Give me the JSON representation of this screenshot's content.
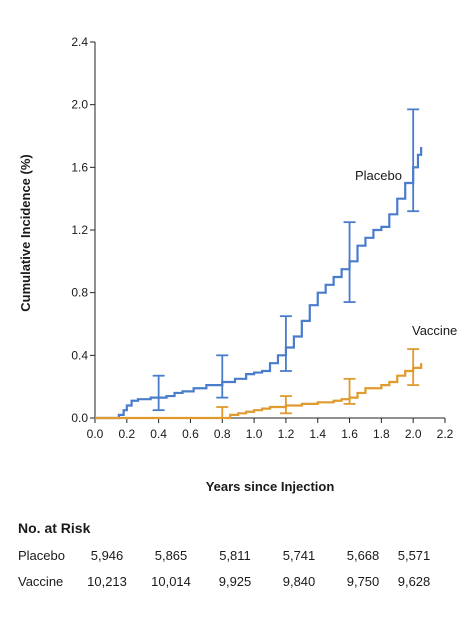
{
  "chart_data": {
    "type": "line",
    "xlabel": "Years since Injection",
    "ylabel": "Cumulative Incidence (%)",
    "xlim": [
      0.0,
      2.2
    ],
    "ylim": [
      0.0,
      2.4
    ],
    "x_ticks": [
      "0.0",
      "0.2",
      "0.4",
      "0.6",
      "0.8",
      "1.0",
      "1.2",
      "1.4",
      "1.6",
      "1.8",
      "2.0",
      "2.2"
    ],
    "y_ticks": [
      "0.0",
      "0.4",
      "0.8",
      "1.2",
      "1.6",
      "2.0",
      "2.4"
    ],
    "grid": false,
    "series": [
      {
        "name": "Placebo",
        "color": "#4a7ccc",
        "points": [
          [
            0,
            0
          ],
          [
            0.1,
            0
          ],
          [
            0.15,
            0.02
          ],
          [
            0.18,
            0.05
          ],
          [
            0.2,
            0.08
          ],
          [
            0.23,
            0.11
          ],
          [
            0.27,
            0.12
          ],
          [
            0.35,
            0.13
          ],
          [
            0.45,
            0.14
          ],
          [
            0.5,
            0.16
          ],
          [
            0.55,
            0.17
          ],
          [
            0.62,
            0.19
          ],
          [
            0.7,
            0.21
          ],
          [
            0.8,
            0.23
          ],
          [
            0.88,
            0.25
          ],
          [
            0.95,
            0.28
          ],
          [
            1.0,
            0.29
          ],
          [
            1.05,
            0.3
          ],
          [
            1.1,
            0.35
          ],
          [
            1.15,
            0.4
          ],
          [
            1.2,
            0.45
          ],
          [
            1.25,
            0.52
          ],
          [
            1.3,
            0.62
          ],
          [
            1.35,
            0.72
          ],
          [
            1.4,
            0.8
          ],
          [
            1.45,
            0.85
          ],
          [
            1.5,
            0.9
          ],
          [
            1.55,
            0.95
          ],
          [
            1.6,
            1.0
          ],
          [
            1.65,
            1.1
          ],
          [
            1.7,
            1.15
          ],
          [
            1.75,
            1.2
          ],
          [
            1.8,
            1.22
          ],
          [
            1.85,
            1.3
          ],
          [
            1.9,
            1.4
          ],
          [
            1.95,
            1.5
          ],
          [
            2.0,
            1.6
          ],
          [
            2.03,
            1.68
          ],
          [
            2.05,
            1.73
          ]
        ],
        "error_bars": [
          {
            "x": 0.4,
            "y": 0.13,
            "low": 0.05,
            "high": 0.27
          },
          {
            "x": 0.8,
            "y": 0.23,
            "low": 0.13,
            "high": 0.4
          },
          {
            "x": 1.2,
            "y": 0.45,
            "low": 0.3,
            "high": 0.65
          },
          {
            "x": 1.6,
            "y": 0.99,
            "low": 0.74,
            "high": 1.25
          },
          {
            "x": 2.0,
            "y": 1.63,
            "low": 1.32,
            "high": 1.97
          }
        ]
      },
      {
        "name": "Vaccine",
        "color": "#e09a2e",
        "points": [
          [
            0,
            0
          ],
          [
            0.8,
            0
          ],
          [
            0.85,
            0.02
          ],
          [
            0.9,
            0.03
          ],
          [
            0.95,
            0.04
          ],
          [
            1.0,
            0.05
          ],
          [
            1.05,
            0.06
          ],
          [
            1.1,
            0.07
          ],
          [
            1.2,
            0.08
          ],
          [
            1.3,
            0.09
          ],
          [
            1.4,
            0.1
          ],
          [
            1.5,
            0.11
          ],
          [
            1.55,
            0.12
          ],
          [
            1.6,
            0.13
          ],
          [
            1.65,
            0.16
          ],
          [
            1.7,
            0.19
          ],
          [
            1.8,
            0.21
          ],
          [
            1.85,
            0.23
          ],
          [
            1.9,
            0.27
          ],
          [
            1.95,
            0.3
          ],
          [
            2.0,
            0.32
          ],
          [
            2.05,
            0.35
          ]
        ],
        "error_bars": [
          {
            "x": 0.8,
            "y": 0.0,
            "low": 0.0,
            "high": 0.07
          },
          {
            "x": 1.2,
            "y": 0.08,
            "low": 0.03,
            "high": 0.14
          },
          {
            "x": 1.6,
            "y": 0.15,
            "low": 0.09,
            "high": 0.25
          },
          {
            "x": 2.0,
            "y": 0.32,
            "low": 0.21,
            "high": 0.44
          }
        ]
      }
    ]
  },
  "risk_table": {
    "heading": "No. at Risk",
    "rows": [
      {
        "label": "Placebo",
        "values": [
          "5,946",
          "5,865",
          "5,811",
          "5,741",
          "5,668",
          "5,571"
        ]
      },
      {
        "label": "Vaccine",
        "values": [
          "10,213",
          "10,014",
          "9,925",
          "9,840",
          "9,750",
          "9,628"
        ]
      }
    ]
  }
}
